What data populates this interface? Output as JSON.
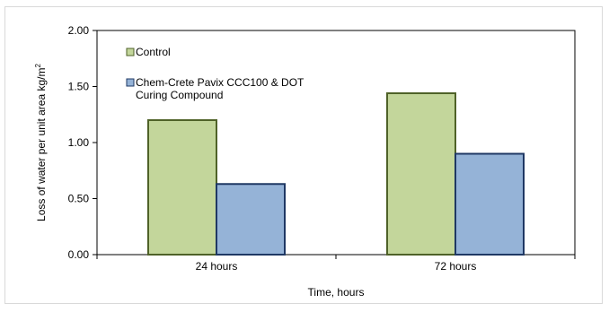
{
  "chart_data": {
    "type": "bar",
    "title": "",
    "xlabel": "Time, hours",
    "ylabel": "Loss of water per unit area kg/m",
    "ylabel_superscript": "2",
    "categories": [
      "24 hours",
      "72 hours"
    ],
    "ylim": [
      0,
      2
    ],
    "yticks": [
      0.0,
      0.5,
      1.0,
      1.5,
      2.0
    ],
    "ytick_labels": [
      "0.00",
      "0.50",
      "1.00",
      "1.50",
      "2.00"
    ],
    "grid": false,
    "legend_position": "top-left",
    "series": [
      {
        "name": "Control",
        "legend_lines": [
          "Control"
        ],
        "values": [
          1.2,
          1.44
        ],
        "fill": "#c3d69b",
        "stroke": "#4f6228"
      },
      {
        "name": "Chem-Crete Pavix CCC100 & DOT Curing Compound",
        "legend_lines": [
          "Chem-Crete Pavix CCC100 & DOT",
          "Curing Compound"
        ],
        "values": [
          0.63,
          0.9
        ],
        "fill": "#95b3d7",
        "stroke": "#1f3864"
      }
    ]
  }
}
